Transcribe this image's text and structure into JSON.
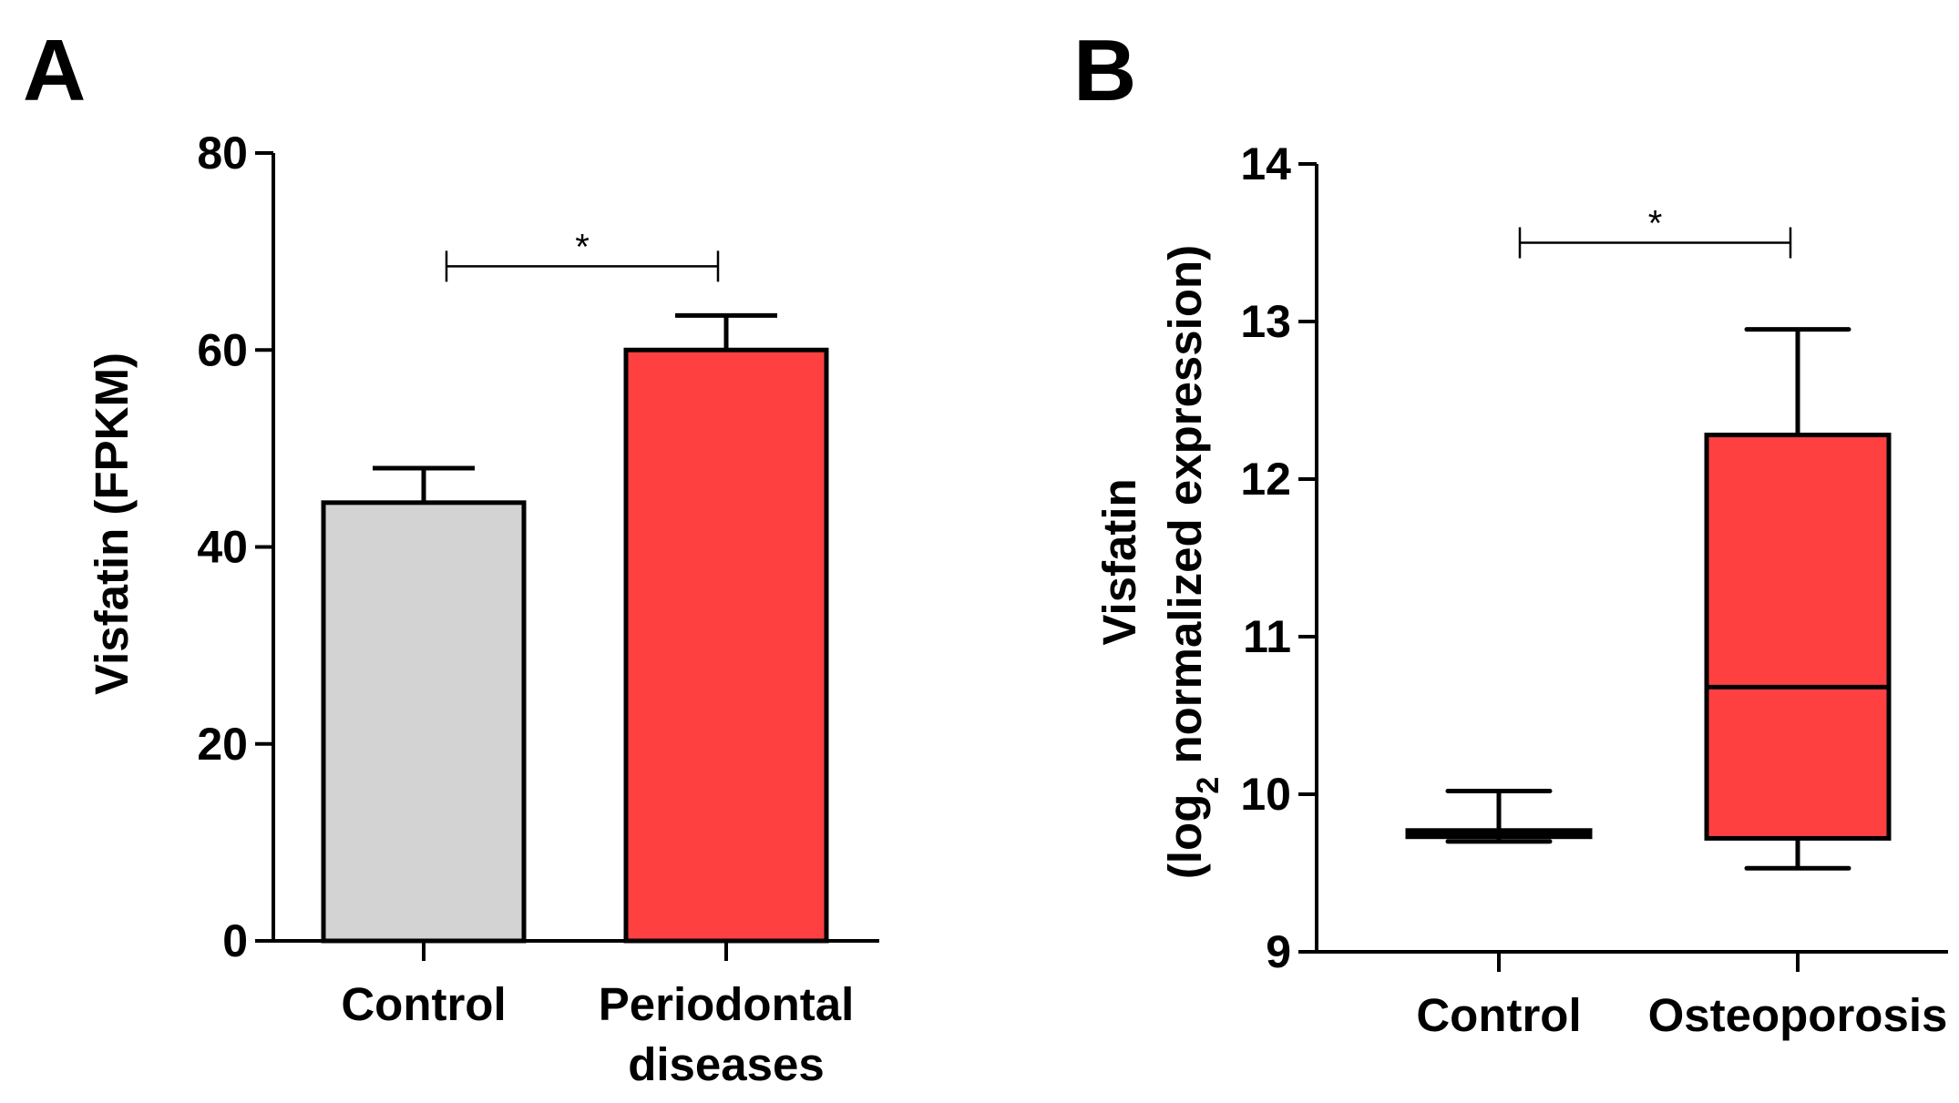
{
  "chart_data": [
    {
      "panel": "A",
      "type": "bar",
      "categories": [
        "Control",
        "Periodontal diseases"
      ],
      "category_lines": [
        [
          "Control"
        ],
        [
          "Periodontal",
          "diseases"
        ]
      ],
      "values": [
        44.5,
        60
      ],
      "errors": [
        3.5,
        3.5
      ],
      "colors": [
        "#d3d3d3",
        "#ff4040"
      ],
      "ylabel": "Visfatin (FPKM)",
      "ylim": [
        0,
        80
      ],
      "yticks": [
        0,
        20,
        40,
        60,
        80
      ],
      "significance": {
        "label": "*",
        "between": [
          0,
          1
        ],
        "y": 68.5
      }
    },
    {
      "panel": "B",
      "type": "box",
      "categories": [
        "Control",
        "Osteoporosis"
      ],
      "boxes": [
        {
          "whisker_low": 9.7,
          "q1": 9.73,
          "median": 9.75,
          "q3": 9.77,
          "whisker_high": 10.02,
          "color": "#ffffff"
        },
        {
          "whisker_low": 9.53,
          "q1": 9.72,
          "median": 10.68,
          "q3": 12.28,
          "whisker_high": 12.95,
          "color": "#ff4040"
        }
      ],
      "ylabel_line1": "Visfatin",
      "ylabel_line2_prefix": "(log",
      "ylabel_line2_sub": "2",
      "ylabel_line2_suffix": " normalized expression)",
      "ylim": [
        9,
        14
      ],
      "yticks": [
        9,
        10,
        11,
        12,
        13,
        14
      ],
      "significance": {
        "label": "*",
        "between": [
          0,
          1
        ],
        "y": 13.5
      }
    }
  ]
}
